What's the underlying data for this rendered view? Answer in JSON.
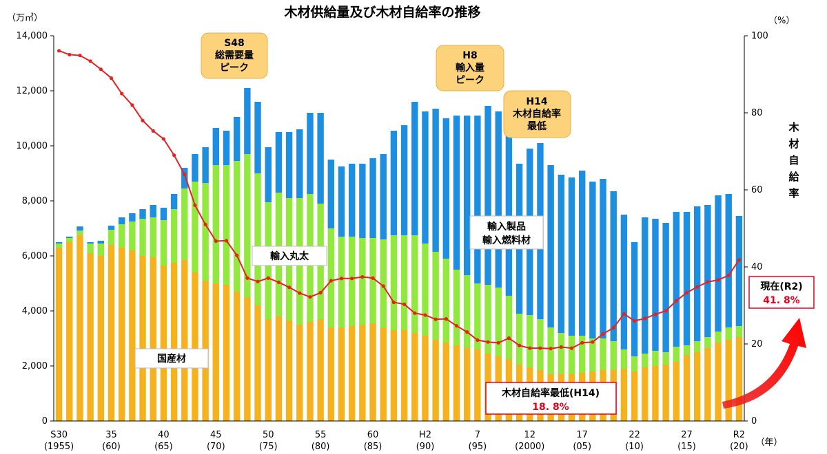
{
  "chart_data": {
    "type": "bar",
    "title": "木材供給量及び木材自給率の推移",
    "left_unit": "（万㎥）",
    "right_unit": "（%）",
    "x_unit": "（年）",
    "ylabel_right": "木材自給率",
    "ylim": [
      0,
      14000
    ],
    "y2lim": [
      0,
      100
    ],
    "y_ticks": [
      "0",
      "2,000",
      "4,000",
      "6,000",
      "8,000",
      "10,000",
      "12,000",
      "14,000"
    ],
    "y2_ticks": [
      "0",
      "20",
      "40",
      "60",
      "80",
      "100"
    ],
    "years": [
      1955,
      1956,
      1957,
      1958,
      1959,
      1960,
      1961,
      1962,
      1963,
      1964,
      1965,
      1966,
      1967,
      1968,
      1969,
      1970,
      1971,
      1972,
      1973,
      1974,
      1975,
      1976,
      1977,
      1978,
      1979,
      1980,
      1981,
      1982,
      1983,
      1984,
      1985,
      1986,
      1987,
      1988,
      1989,
      1990,
      1991,
      1992,
      1993,
      1994,
      1995,
      1996,
      1997,
      1998,
      1999,
      2000,
      2001,
      2002,
      2003,
      2004,
      2005,
      2006,
      2007,
      2008,
      2009,
      2010,
      2011,
      2012,
      2013,
      2014,
      2015,
      2016,
      2017,
      2018,
      2019,
      2020
    ],
    "x_tick_labels": [
      {
        "year": 1955,
        "line1": "S30",
        "line2": "(1955)"
      },
      {
        "year": 1960,
        "line1": "35",
        "line2": "(60)"
      },
      {
        "year": 1965,
        "line1": "40",
        "line2": "(65)"
      },
      {
        "year": 1970,
        "line1": "45",
        "line2": "(70)"
      },
      {
        "year": 1975,
        "line1": "50",
        "line2": "(75)"
      },
      {
        "year": 1980,
        "line1": "55",
        "line2": "(80)"
      },
      {
        "year": 1985,
        "line1": "60",
        "line2": "(85)"
      },
      {
        "year": 1990,
        "line1": "H2",
        "line2": "(90)"
      },
      {
        "year": 1995,
        "line1": "7",
        "line2": "(95)"
      },
      {
        "year": 2000,
        "line1": "12",
        "line2": "(2000)"
      },
      {
        "year": 2005,
        "line1": "17",
        "line2": "(05)"
      },
      {
        "year": 2010,
        "line1": "22",
        "line2": "(10)"
      },
      {
        "year": 2015,
        "line1": "27",
        "line2": "(15)"
      },
      {
        "year": 2020,
        "line1": "R2",
        "line2": "(20)"
      }
    ],
    "series": [
      {
        "name": "国産材",
        "color": "#f5b21e",
        "values": [
          6300,
          6500,
          6770,
          6100,
          6000,
          6400,
          6300,
          6200,
          6000,
          5950,
          5650,
          5750,
          5850,
          5400,
          5100,
          5000,
          4950,
          4700,
          4500,
          4200,
          3700,
          3800,
          3650,
          3500,
          3600,
          3700,
          3400,
          3400,
          3450,
          3500,
          3550,
          3400,
          3300,
          3300,
          3200,
          3100,
          2950,
          2850,
          2750,
          2650,
          2600,
          2450,
          2350,
          2250,
          2050,
          1950,
          1850,
          1700,
          1700,
          1700,
          1750,
          1800,
          1850,
          1850,
          1900,
          1800,
          1950,
          2000,
          2050,
          2150,
          2400,
          2500,
          2650,
          2850,
          2950,
          3050
        ]
      },
      {
        "name": "輸入丸太",
        "color": "#92e83e",
        "values": [
          150,
          150,
          150,
          350,
          450,
          550,
          850,
          1050,
          1350,
          1450,
          1650,
          1950,
          2600,
          3300,
          3550,
          4300,
          4350,
          4750,
          5200,
          4800,
          4250,
          4500,
          4450,
          4600,
          4650,
          4200,
          3600,
          3300,
          3250,
          3150,
          3100,
          3200,
          3450,
          3450,
          3550,
          3350,
          3200,
          3050,
          2750,
          2650,
          2400,
          2500,
          2500,
          2300,
          1850,
          1900,
          1850,
          1700,
          1500,
          1400,
          1350,
          1200,
          1150,
          1050,
          700,
          550,
          500,
          550,
          450,
          550,
          350,
          400,
          400,
          400,
          450,
          400
        ]
      },
      {
        "name": "輸入製品・輸入燃料材",
        "color": "#1e8fe0",
        "values": [
          50,
          50,
          150,
          50,
          100,
          150,
          250,
          300,
          350,
          450,
          450,
          550,
          750,
          1000,
          1300,
          1350,
          1250,
          1600,
          2400,
          2600,
          2000,
          2200,
          2400,
          2500,
          2950,
          3300,
          2500,
          2550,
          2650,
          2700,
          2900,
          3100,
          3800,
          4000,
          4850,
          4800,
          5200,
          5100,
          5600,
          5800,
          6100,
          6500,
          6400,
          6300,
          5450,
          6050,
          6400,
          5900,
          5750,
          5750,
          6000,
          5700,
          5800,
          5450,
          4900,
          4150,
          4950,
          4800,
          4700,
          4900,
          4850,
          4900,
          4800,
          4950,
          4850,
          4000
        ]
      },
      {
        "name": "木材自給率",
        "color": "#e82020",
        "values": [
          96.1,
          95.1,
          94.9,
          93.4,
          91.3,
          89.0,
          85.0,
          82.0,
          78.0,
          75.3,
          73.2,
          69.0,
          64.0,
          56.0,
          51.0,
          46.7,
          46.8,
          43.0,
          37.1,
          36.2,
          37.1,
          36.0,
          34.7,
          33.2,
          32.2,
          33.3,
          36.4,
          37.0,
          37.0,
          37.4,
          37.1,
          35.0,
          30.8,
          30.3,
          28.0,
          27.5,
          26.4,
          26.5,
          24.7,
          23.1,
          21.0,
          20.5,
          20.3,
          21.5,
          19.6,
          18.9,
          18.9,
          18.8,
          19.2,
          18.9,
          20.3,
          20.5,
          22.6,
          24.2,
          27.8,
          26.0,
          26.6,
          27.7,
          28.6,
          31.2,
          33.3,
          34.8,
          36.1,
          36.6,
          37.8,
          41.8
        ]
      }
    ],
    "annotations": {
      "callout_1": [
        "S48",
        "総需要量",
        "ピーク"
      ],
      "callout_2": [
        "H8",
        "輸入量",
        "ピーク"
      ],
      "callout_3": [
        "H14",
        "木材自給率",
        "最低"
      ],
      "label_domestic": "国産材",
      "label_logs": "輸入丸太",
      "label_products": [
        "輸入製品",
        "輸入燃料材"
      ],
      "min_box": [
        "木材自給率最低(H14)",
        "18. 8%"
      ],
      "current_box": [
        "現在(R2)",
        "41. 8%"
      ]
    }
  }
}
